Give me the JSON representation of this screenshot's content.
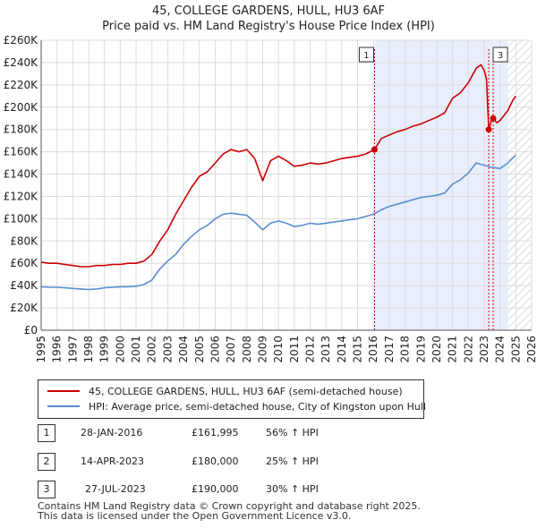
{
  "chart_data": {
    "type": "line",
    "title": "45, COLLEGE GARDENS, HULL, HU3 6AF",
    "subtitle": "Price paid vs. HM Land Registry's House Price Index (HPI)",
    "xlim": [
      1995,
      2026
    ],
    "ylim": [
      0,
      260000
    ],
    "x_ticks": [
      "1995",
      "1996",
      "1997",
      "1998",
      "1999",
      "2000",
      "2001",
      "2002",
      "2003",
      "2004",
      "2005",
      "2006",
      "2007",
      "2008",
      "2009",
      "2010",
      "2011",
      "2012",
      "2013",
      "2014",
      "2015",
      "2016",
      "2017",
      "2018",
      "2019",
      "2020",
      "2021",
      "2022",
      "2023",
      "2024",
      "2025",
      "2026"
    ],
    "y_ticks": [
      {
        "value": 0,
        "label": "£0"
      },
      {
        "value": 20000,
        "label": "£20K"
      },
      {
        "value": 40000,
        "label": "£40K"
      },
      {
        "value": 60000,
        "label": "£60K"
      },
      {
        "value": 80000,
        "label": "£80K"
      },
      {
        "value": 100000,
        "label": "£100K"
      },
      {
        "value": 120000,
        "label": "£120K"
      },
      {
        "value": 140000,
        "label": "£140K"
      },
      {
        "value": 160000,
        "label": "£160K"
      },
      {
        "value": 180000,
        "label": "£180K"
      },
      {
        "value": 200000,
        "label": "£200K"
      },
      {
        "value": 220000,
        "label": "£220K"
      },
      {
        "value": 240000,
        "label": "£240K"
      },
      {
        "value": 260000,
        "label": "£260K"
      }
    ],
    "grid": true,
    "shaded_period": {
      "from": 2016.07,
      "to": 2024.5
    },
    "future_hatch_from": 2024.5,
    "series": [
      {
        "name": "45, COLLEGE GARDENS, HULL, HU3 6AF (semi-detached house)",
        "color": "#cc0000",
        "x": [
          1995.0,
          1995.5,
          1996.0,
          1996.5,
          1997.0,
          1997.5,
          1998.0,
          1998.5,
          1999.0,
          1999.5,
          2000.0,
          2000.5,
          2001.0,
          2001.5,
          2002.0,
          2002.5,
          2003.0,
          2003.5,
          2004.0,
          2004.5,
          2005.0,
          2005.5,
          2006.0,
          2006.5,
          2007.0,
          2007.5,
          2008.0,
          2008.5,
          2009.0,
          2009.5,
          2010.0,
          2010.5,
          2011.0,
          2011.5,
          2012.0,
          2012.5,
          2013.0,
          2013.5,
          2014.0,
          2014.5,
          2015.0,
          2015.5,
          2016.07,
          2016.5,
          2017.0,
          2017.5,
          2018.0,
          2018.5,
          2019.0,
          2019.5,
          2020.0,
          2020.5,
          2021.0,
          2021.5,
          2022.0,
          2022.5,
          2022.8,
          2023.0,
          2023.15,
          2023.29,
          2023.5,
          2023.57,
          2023.8,
          2024.0,
          2024.5,
          2024.8,
          2025.0
        ],
        "values": [
          61000,
          60000,
          60000,
          59000,
          58000,
          57000,
          57000,
          58000,
          58000,
          59000,
          59000,
          60000,
          60000,
          62000,
          68000,
          80000,
          90000,
          104000,
          116000,
          128000,
          138000,
          142000,
          150000,
          158000,
          162000,
          160000,
          162000,
          154000,
          134000,
          152000,
          156000,
          152000,
          147000,
          148000,
          150000,
          149000,
          150000,
          152000,
          154000,
          155000,
          156000,
          158000,
          161995,
          172000,
          175000,
          178000,
          180000,
          183000,
          185000,
          188000,
          191000,
          195000,
          208000,
          213000,
          222000,
          235000,
          238000,
          233000,
          225000,
          180000,
          190000,
          190000,
          186000,
          188000,
          197000,
          206000,
          210000
        ]
      },
      {
        "name": "HPI: Average price, semi-detached house, City of Kingston upon Hull",
        "color": "#5a8ed0",
        "x": [
          1995.0,
          1995.5,
          1996.0,
          1996.5,
          1997.0,
          1997.5,
          1998.0,
          1998.5,
          1999.0,
          1999.5,
          2000.0,
          2000.5,
          2001.0,
          2001.5,
          2002.0,
          2002.5,
          2003.0,
          2003.5,
          2004.0,
          2004.5,
          2005.0,
          2005.5,
          2006.0,
          2006.5,
          2007.0,
          2007.5,
          2008.0,
          2008.5,
          2009.0,
          2009.5,
          2010.0,
          2010.5,
          2011.0,
          2011.5,
          2012.0,
          2012.5,
          2013.0,
          2013.5,
          2014.0,
          2014.5,
          2015.0,
          2015.5,
          2016.0,
          2016.5,
          2017.0,
          2017.5,
          2018.0,
          2018.5,
          2019.0,
          2019.5,
          2020.0,
          2020.5,
          2021.0,
          2021.5,
          2022.0,
          2022.5,
          2023.0,
          2023.5,
          2024.0,
          2024.5,
          2025.0
        ],
        "values": [
          39000,
          38500,
          38500,
          38000,
          37500,
          37000,
          36500,
          37000,
          38000,
          38500,
          39000,
          39000,
          39500,
          41000,
          45000,
          55000,
          62000,
          68000,
          77000,
          84000,
          90000,
          94000,
          100000,
          104000,
          105000,
          104000,
          103000,
          97000,
          90000,
          96000,
          98000,
          96000,
          93000,
          94000,
          96000,
          95000,
          96000,
          97000,
          98000,
          99000,
          100000,
          102000,
          104000,
          108000,
          111000,
          113000,
          115000,
          117000,
          119000,
          120000,
          121000,
          123000,
          131000,
          135000,
          141000,
          150000,
          148000,
          146000,
          145000,
          150000,
          157000
        ]
      }
    ],
    "sales": [
      {
        "label": "1",
        "x": 2016.07,
        "price": 161995
      },
      {
        "label": "2",
        "x": 2023.29,
        "price": 180000
      },
      {
        "label": "3",
        "x": 2023.57,
        "price": 190000
      }
    ]
  },
  "legend": {
    "property_label": "45, COLLEGE GARDENS, HULL, HU3 6AF (semi-detached house)",
    "hpi_label": "HPI: Average price, semi-detached house, City of Kingston upon Hull",
    "property_color": "#cc0000",
    "hpi_color": "#5a8ed0"
  },
  "transactions": [
    {
      "num": "1",
      "date": "28-JAN-2016",
      "price": "£161,995",
      "hpi": "56% ↑ HPI"
    },
    {
      "num": "2",
      "date": "14-APR-2023",
      "price": "£180,000",
      "hpi": "25% ↑ HPI"
    },
    {
      "num": "3",
      "date": "27-JUL-2023",
      "price": "£190,000",
      "hpi": "30% ↑ HPI"
    }
  ],
  "footer": {
    "line1": "Contains HM Land Registry data © Crown copyright and database right 2025.",
    "line2": "This data is licensed under the Open Government Licence v3.0."
  }
}
